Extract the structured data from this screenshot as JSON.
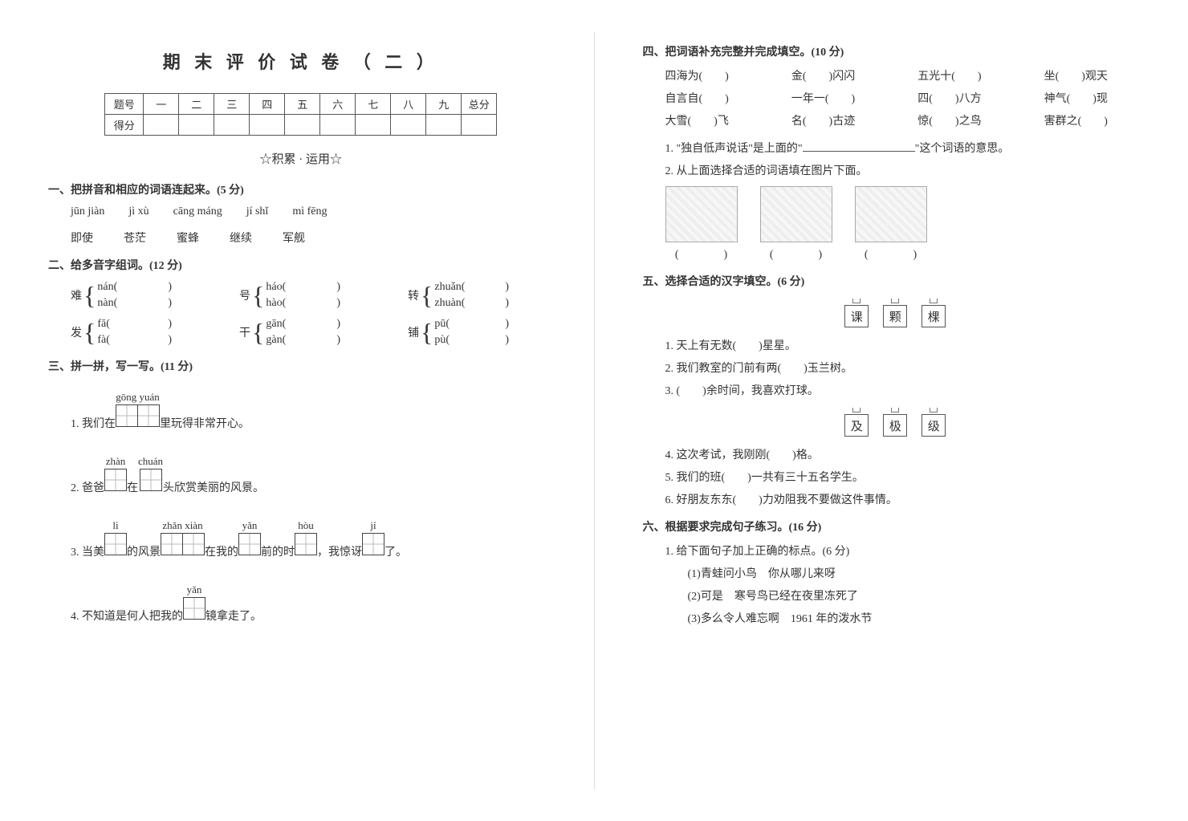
{
  "title": "期 末 评 价 试 卷 （ 二 ）",
  "score_row_label": "题号",
  "score_row2_label": "得分",
  "score_cols": [
    "一",
    "二",
    "三",
    "四",
    "五",
    "六",
    "七",
    "八",
    "九",
    "总分"
  ],
  "subhead": "☆积累 · 运用☆",
  "sec1": {
    "title": "一、把拼音和相应的词语连起来。(5 分)",
    "pinyin": [
      "jūn jiàn",
      "jì xù",
      "cāng máng",
      "jí shǐ",
      "mì fēng"
    ],
    "words": [
      "即使",
      "苍茫",
      "蜜蜂",
      "继续",
      "军舰"
    ]
  },
  "sec2": {
    "title": "二、给多音字组词。(12 分)",
    "items": [
      {
        "han": "难",
        "p1": "nán(",
        "p2": "nàn("
      },
      {
        "han": "号",
        "p1": "háo(",
        "p2": "hào("
      },
      {
        "han": "转",
        "p1": "zhuǎn(",
        "p2": "zhuàn("
      },
      {
        "han": "发",
        "p1": "fā(",
        "p2": "fà("
      },
      {
        "han": "干",
        "p1": "gān(",
        "p2": "gàn("
      },
      {
        "han": "铺",
        "p1": "pū(",
        "p2": "pù("
      }
    ],
    "close": ")"
  },
  "sec3": {
    "title": "三、拼一拼，写一写。(11 分)",
    "q1": {
      "pre": "1. 我们在",
      "py": "gōng yuán",
      "boxes": 2,
      "post": "里玩得非常开心。"
    },
    "q2": {
      "pre": "2. 爸爸",
      "g1": {
        "py": "zhàn",
        "boxes": 1
      },
      "mid1": "在",
      "g2": {
        "py": "chuán",
        "boxes": 1
      },
      "post": "头欣赏美丽的风景。"
    },
    "q3": {
      "pre": "3. 当美",
      "g1": {
        "py": "lì",
        "boxes": 1
      },
      "mid1": "的风景",
      "g2": {
        "py": "zhǎn xiàn",
        "boxes": 2
      },
      "mid2": "在我的",
      "g3": {
        "py": "yǎn",
        "boxes": 1
      },
      "mid3": "前的时",
      "g4": {
        "py": "hòu",
        "boxes": 1
      },
      "mid4": "，我惊讶",
      "g5": {
        "py": "jí",
        "boxes": 1
      },
      "post": "了。"
    },
    "q4": {
      "pre": "4. 不知道是何人把我的",
      "py": "yǎn",
      "boxes": 1,
      "post": "镜拿走了。"
    }
  },
  "sec4": {
    "title": "四、把词语补充完整并完成填空。(10 分)",
    "idioms": [
      "四海为(　　)",
      "金(　　)闪闪",
      "五光十(　　)",
      "坐(　　)观天",
      "自言自(　　)",
      "一年一(　　)",
      "四(　　)八方",
      "神气(　　)现",
      "大雪(　　)飞",
      "名(　　)古迹",
      "惊(　　)之鸟",
      "害群之(　　)"
    ],
    "sub1_pre": "1. \"独自低声说话\"是上面的\"",
    "sub1_post": "\"这个词语的意思。",
    "sub2": "2. 从上面选择合适的词语填在图片下面。",
    "img_caption": "(　　　　)"
  },
  "sec5": {
    "title": "五、选择合适的汉字填空。(6 分)",
    "group1": [
      "课",
      "颗",
      "棵"
    ],
    "q1": "1. 天上有无数(　　)星星。",
    "q2": "2. 我们教室的门前有两(　　)玉兰树。",
    "q3": "3. (　　)余时间，我喜欢打球。",
    "group2": [
      "及",
      "极",
      "级"
    ],
    "q4": "4. 这次考试，我刚刚(　　)格。",
    "q5": "5. 我们的班(　　)一共有三十五名学生。",
    "q6": "6. 好朋友东东(　　)力劝阻我不要做这件事情。"
  },
  "sec6": {
    "title": "六、根据要求完成句子练习。(16 分)",
    "sub1": "1. 给下面句子加上正确的标点。(6 分)",
    "s1": "(1)青蛙问小鸟　你从哪儿来呀",
    "s2": "(2)可是　寒号鸟已经在夜里冻死了",
    "s3": "(3)多么令人难忘啊　1961 年的泼水节"
  }
}
